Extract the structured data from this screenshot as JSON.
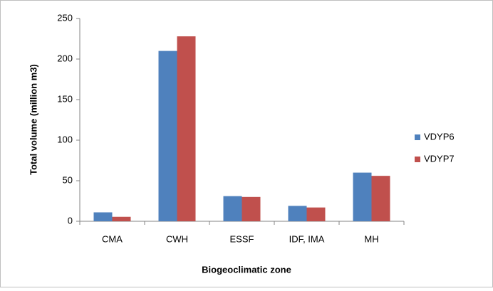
{
  "chart_data": {
    "type": "bar",
    "x_label": "Biogeoclimatic zone",
    "y_label": "Total volume (million m3)",
    "categories": [
      "CMA",
      "CWH",
      "ESSF",
      "IDF, IMA",
      "MH"
    ],
    "series": [
      {
        "name": "VDYP6",
        "color": "#4f81bd",
        "values": [
          11,
          210,
          31,
          19,
          60
        ]
      },
      {
        "name": "VDYP7",
        "color": "#c0504d",
        "values": [
          5.5,
          228,
          30,
          17,
          56
        ]
      }
    ],
    "ylim": [
      0,
      250
    ],
    "yticks": [
      0,
      50,
      100,
      150,
      200,
      250
    ],
    "grid": false,
    "legend": "right"
  }
}
